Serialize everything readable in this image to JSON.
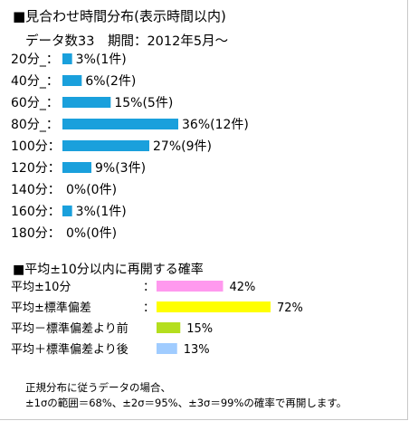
{
  "title": "■見合わせ時間分布(表示時間以内)",
  "subtitle": "データ数33　期間：2012年5月～",
  "colors": {
    "distribution_bar": "#1aa0dc",
    "avg_10": "#ff99ee",
    "avg_sd": "#ffff00",
    "before_avg_sd": "#b4de1e",
    "after_avg_sd": "#a0ccff"
  },
  "chart_data": [
    {
      "type": "bar",
      "orientation": "horizontal",
      "categories": [
        "20分_：",
        "40分_：",
        "60分_：",
        "80分_：",
        "100分：",
        "120分：",
        "140分：",
        "160分：",
        "180分："
      ],
      "values": [
        3,
        6,
        15,
        36,
        27,
        9,
        0,
        3,
        0
      ],
      "counts": [
        1,
        2,
        5,
        12,
        9,
        3,
        0,
        1,
        0
      ],
      "data_labels": [
        "3%(1件)",
        "6%(2件)",
        "15%(5件)",
        "36%(12件)",
        "27%(9件)",
        "9%(3件)",
        "0%(0件)",
        "3%(1件)",
        "0%(0件)"
      ],
      "unit": "%",
      "xlim": [
        0,
        36
      ]
    },
    {
      "type": "bar",
      "orientation": "horizontal",
      "title": "■平均±10分以内に再開する確率",
      "categories": [
        "平均±10分",
        "平均±標準偏差",
        "平均－標準偏差より前",
        "平均＋標準偏差より後"
      ],
      "separator": "：",
      "values": [
        42,
        72,
        15,
        13
      ],
      "data_labels": [
        "42%",
        "72%",
        "15%",
        "13%"
      ],
      "unit": "%",
      "xlim": [
        0,
        72
      ]
    }
  ],
  "note": {
    "line1": "正規分布に従うデータの場合、",
    "line2": "±1σの範囲＝68%、±2σ＝95%、±3σ＝99%の確率で再開します。"
  }
}
